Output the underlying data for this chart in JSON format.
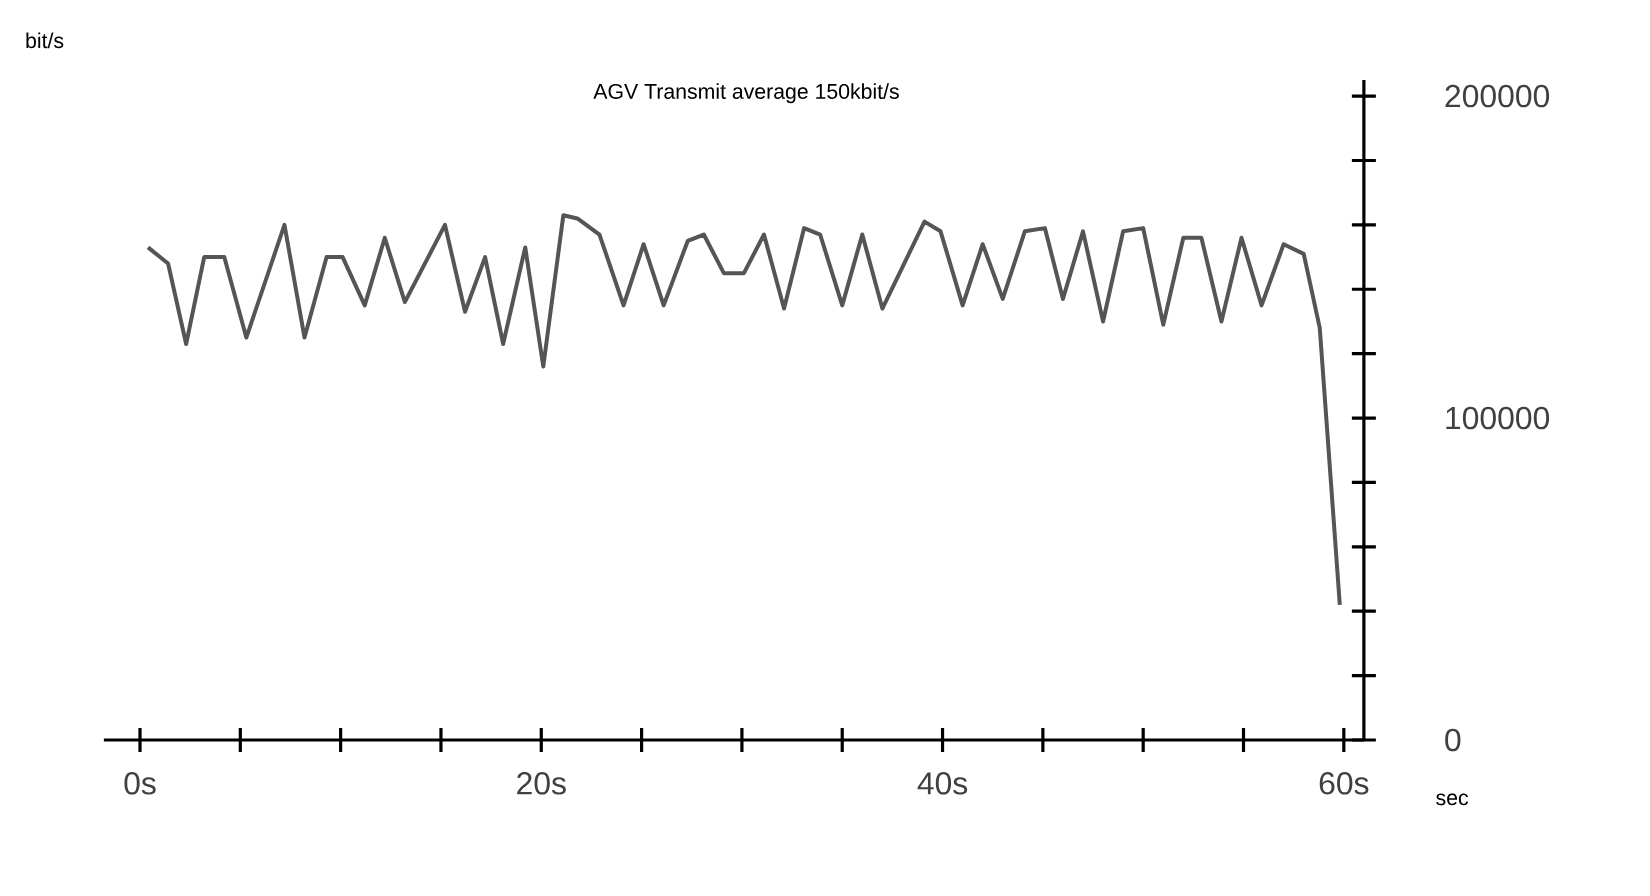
{
  "chart_data": {
    "type": "line",
    "title": "AGV Transmit    average 150kbit/s",
    "xlabel": "sec",
    "ylabel": "bit/s",
    "xlim": [
      -1.8,
      61
    ],
    "ylim": [
      0,
      205000
    ],
    "xticks": [
      {
        "value": 0,
        "label": "0s"
      },
      {
        "value": 5,
        "label": null
      },
      {
        "value": 10,
        "label": null
      },
      {
        "value": 15,
        "label": null
      },
      {
        "value": 20,
        "label": "20s"
      },
      {
        "value": 25,
        "label": null
      },
      {
        "value": 30,
        "label": null
      },
      {
        "value": 35,
        "label": null
      },
      {
        "value": 40,
        "label": "40s"
      },
      {
        "value": 45,
        "label": null
      },
      {
        "value": 50,
        "label": null
      },
      {
        "value": 55,
        "label": null
      },
      {
        "value": 60,
        "label": "60s"
      }
    ],
    "yticks": [
      0,
      {
        "value": 20000,
        "label": null
      },
      {
        "value": 40000,
        "label": null
      },
      {
        "value": 60000,
        "label": null
      },
      {
        "value": 80000,
        "label": null
      },
      100000,
      {
        "value": 120000,
        "label": null
      },
      {
        "value": 140000,
        "label": null
      },
      {
        "value": 160000,
        "label": null
      },
      {
        "value": 180000,
        "label": null
      },
      200000
    ],
    "grid": false,
    "marker": "none",
    "line_style": "solid",
    "series": [
      {
        "color": "#555555",
        "x": [
          0.4,
          1.4,
          2.3,
          3.2,
          4.2,
          5.3,
          7.2,
          8.2,
          9.3,
          10.1,
          11.2,
          12.2,
          13.2,
          15.2,
          16.2,
          17.2,
          18.1,
          19.2,
          20.1,
          21.1,
          21.8,
          22.9,
          24.1,
          25.1,
          26.1,
          27.3,
          28.1,
          29.1,
          30.1,
          31.1,
          32.1,
          33.1,
          33.9,
          35,
          36,
          37,
          39.1,
          39.9,
          41,
          42,
          43,
          44.1,
          45.1,
          46,
          47,
          48,
          49,
          50,
          51,
          52,
          52.9,
          53.9,
          54.9,
          55.9,
          57,
          58,
          58.8,
          59.8
        ],
        "values": [
          153000,
          148000,
          123000,
          150000,
          150000,
          125000,
          160000,
          125000,
          150000,
          150000,
          135000,
          156000,
          136000,
          160000,
          133000,
          150000,
          123000,
          153000,
          116000,
          163000,
          162000,
          157000,
          135000,
          154000,
          135000,
          155000,
          157000,
          145000,
          145000,
          157000,
          134000,
          159000,
          157000,
          135000,
          157000,
          134000,
          161000,
          158000,
          135000,
          154000,
          137000,
          158000,
          159000,
          137000,
          158000,
          130000,
          158000,
          159000,
          129000,
          156000,
          156000,
          130000,
          156000,
          135000,
          154000,
          151000,
          128000,
          42000
        ]
      }
    ]
  }
}
